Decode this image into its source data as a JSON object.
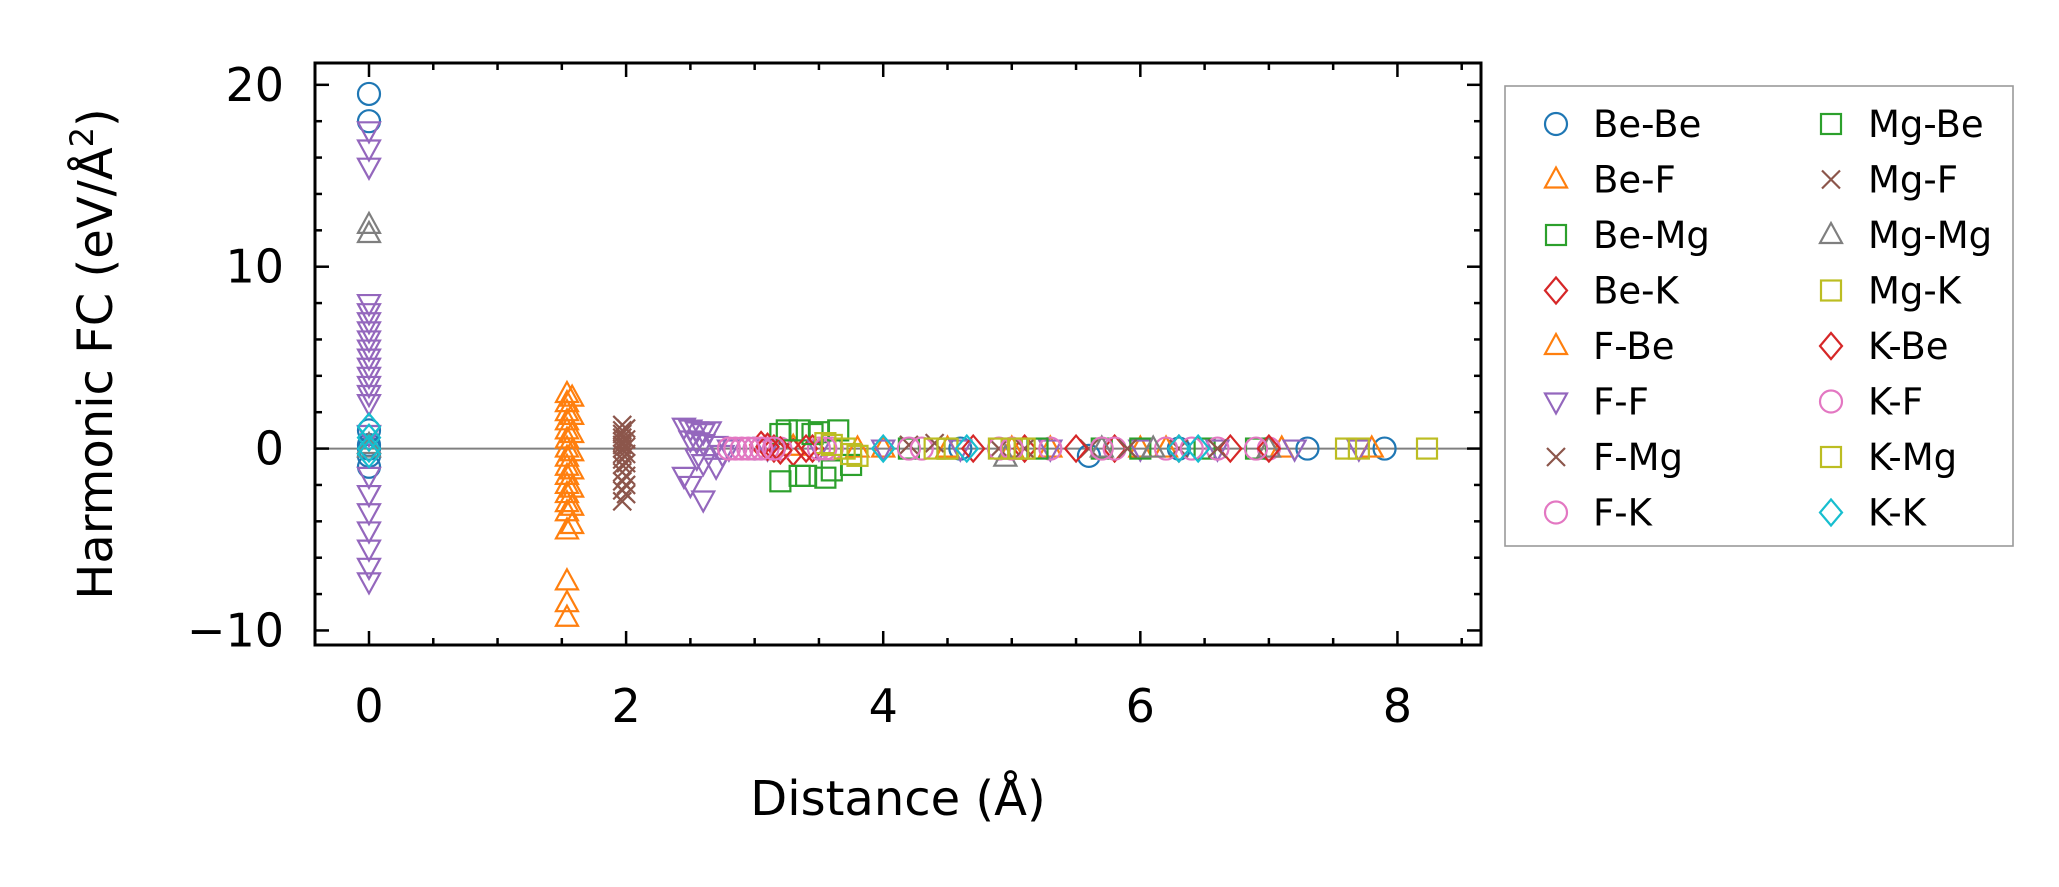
{
  "chart_data": {
    "type": "scatter",
    "xlabel": "Distance (Å)",
    "ylabel_main": "Harmonic FC (eV/Å",
    "ylabel_sup": "2",
    "ylabel_end": ")",
    "xlim": [
      -0.42,
      8.65
    ],
    "ylim": [
      -10.8,
      21.2
    ],
    "xticks": [
      0,
      2,
      4,
      6,
      8
    ],
    "xtick_labels": [
      "0",
      "2",
      "4",
      "6",
      "8"
    ],
    "yticks": [
      -10,
      0,
      10,
      20
    ],
    "ytick_labels": [
      "−10",
      "0",
      "10",
      "20"
    ],
    "grid": false,
    "zero_line": true,
    "legend_position": "outside-right",
    "series": [
      {
        "name": "Be-Be",
        "marker": "circle",
        "color": "#1f77b4",
        "x": [
          0,
          0,
          0,
          0,
          0,
          0,
          0,
          3.0,
          4.6,
          5.6,
          6.3,
          7.3,
          7.9
        ],
        "y": [
          19.5,
          18.0,
          1.0,
          0.2,
          -0.4,
          -1.0,
          0.0,
          0.0,
          0.0,
          -0.4,
          0.0,
          0.0,
          0.0
        ]
      },
      {
        "name": "Be-F",
        "marker": "triangle-up",
        "color": "#ff7f0e",
        "x": [
          1.54,
          1.54,
          1.54,
          1.54,
          1.54,
          1.54,
          1.54,
          1.54,
          1.54,
          1.54,
          1.54,
          1.54,
          1.54,
          1.54,
          1.54,
          1.54,
          1.54,
          1.54,
          3.3,
          3.8,
          4.5,
          5.3,
          6.2,
          7.1,
          7.8
        ],
        "y": [
          3.0,
          2.5,
          2.0,
          1.5,
          1.0,
          0.5,
          0.0,
          -0.5,
          -1.0,
          -1.5,
          -2.0,
          -2.5,
          -3.0,
          -3.5,
          -4.5,
          -7.3,
          -8.5,
          -9.3,
          0.1,
          0.0,
          0.0,
          0.0,
          0.0,
          0.0,
          0.0
        ]
      },
      {
        "name": "Be-Mg",
        "marker": "square",
        "color": "#2ca02c",
        "x": [
          3.2,
          3.35,
          3.5,
          3.2,
          3.4,
          3.6,
          4.2,
          5.0,
          5.7,
          6.5
        ],
        "y": [
          0.8,
          1.0,
          0.9,
          -1.8,
          -1.5,
          -1.2,
          0.0,
          0.0,
          0.0,
          0.0
        ]
      },
      {
        "name": "Be-K",
        "marker": "diamond",
        "color": "#d62728",
        "x": [
          3.05,
          3.15,
          3.3,
          3.45,
          5.1,
          5.8,
          6.7
        ],
        "y": [
          0.2,
          0.0,
          -0.2,
          0.0,
          0.0,
          0.0,
          0.0
        ]
      },
      {
        "name": "F-Be",
        "marker": "triangle-up",
        "color": "#ff7f0e",
        "x": [
          1.58,
          1.58,
          1.58,
          1.58,
          1.58,
          1.58,
          1.58,
          1.58,
          4.0,
          5.0,
          6.0,
          7.0
        ],
        "y": [
          2.8,
          1.8,
          0.8,
          -0.2,
          -1.2,
          -2.2,
          -3.2,
          -4.2,
          0.0,
          0.0,
          0.0,
          0.0
        ]
      },
      {
        "name": "F-F",
        "marker": "triangle-down",
        "color": "#9467bd",
        "x": [
          0,
          0,
          0,
          0,
          0,
          0,
          0,
          0,
          0,
          0,
          0,
          0,
          0,
          0,
          0,
          0,
          0,
          0,
          0,
          0,
          0,
          0,
          0,
          2.45,
          2.5,
          2.55,
          2.6,
          2.65,
          2.5,
          2.55,
          2.6,
          2.7,
          2.55,
          2.6,
          2.75,
          2.8,
          2.45,
          2.5,
          2.6,
          2.7,
          3.1,
          3.5,
          4.0,
          4.6,
          5.3,
          6.0,
          6.6,
          7.2,
          7.7
        ],
        "y": [
          17.5,
          16.5,
          15.5,
          8.0,
          7.5,
          7.0,
          6.5,
          6.0,
          5.5,
          5.0,
          4.5,
          4.0,
          3.5,
          3.0,
          2.5,
          0.8,
          -1.5,
          -2.5,
          -3.5,
          -4.5,
          -5.5,
          -6.5,
          -7.3,
          1.2,
          1.1,
          1.0,
          0.9,
          1.0,
          0.5,
          0.4,
          0.3,
          0.2,
          -0.5,
          -0.8,
          -0.3,
          0.0,
          -1.5,
          -2.0,
          -2.8,
          -1.0,
          0.0,
          0.0,
          0.0,
          0.0,
          0.0,
          0.0,
          0.0,
          0.0,
          0.0
        ]
      },
      {
        "name": "F-Mg",
        "marker": "x",
        "color": "#8c564b",
        "x": [
          1.97,
          1.97,
          1.97,
          1.97,
          1.97,
          1.97,
          1.97,
          1.97,
          1.97,
          1.97,
          1.97,
          1.97,
          1.97,
          1.97,
          4.2,
          4.9,
          5.6,
          6.3
        ],
        "y": [
          1.3,
          1.0,
          0.8,
          0.6,
          0.4,
          0.2,
          0.0,
          -0.3,
          -0.6,
          -0.9,
          -1.3,
          -1.8,
          -2.3,
          -2.9,
          0.2,
          0.0,
          0.0,
          0.0
        ]
      },
      {
        "name": "F-K",
        "marker": "circle",
        "color": "#e377c2",
        "x": [
          2.8,
          2.9,
          3.0,
          3.1,
          3.2,
          3.5,
          3.6,
          4.3,
          4.9,
          5.3,
          5.8,
          6.2,
          6.6,
          7.0
        ],
        "y": [
          0.0,
          0.0,
          0.0,
          0.0,
          0.0,
          0.0,
          0.0,
          0.0,
          0.0,
          0.0,
          0.0,
          0.0,
          0.0,
          0.0
        ]
      },
      {
        "name": "Mg-Be",
        "marker": "square",
        "color": "#2ca02c",
        "x": [
          3.25,
          3.45,
          3.65,
          3.35,
          3.55,
          3.75,
          4.5,
          5.2,
          6.0,
          6.9
        ],
        "y": [
          1.0,
          0.8,
          1.0,
          -1.5,
          -1.6,
          -0.9,
          0.0,
          0.0,
          0.0,
          0.0
        ]
      },
      {
        "name": "Mg-F",
        "marker": "x",
        "color": "#8c564b",
        "x": [
          2.0,
          2.0,
          2.0,
          2.0,
          2.0,
          2.0,
          2.0,
          2.0,
          4.4,
          5.1,
          5.9,
          6.6
        ],
        "y": [
          1.1,
          0.5,
          0.1,
          -0.3,
          -0.8,
          -1.5,
          -2.0,
          -2.5,
          0.3,
          0.0,
          0.0,
          0.0
        ]
      },
      {
        "name": "Mg-Mg",
        "marker": "triangle-up",
        "color": "#7f7f7f",
        "x": [
          0,
          0,
          0,
          0,
          4.95,
          5.7,
          6.1,
          7.0
        ],
        "y": [
          12.3,
          11.8,
          0.2,
          0.0,
          -0.5,
          0.0,
          0.0,
          0.0
        ]
      },
      {
        "name": "Mg-K",
        "marker": "square",
        "color": "#bcbd22",
        "x": [
          3.55,
          3.7,
          3.8,
          4.5,
          5.0,
          5.1,
          7.7,
          8.23
        ],
        "y": [
          0.3,
          0.0,
          -0.4,
          0.0,
          0.0,
          0.0,
          0.0,
          0.0
        ]
      },
      {
        "name": "K-Be",
        "marker": "diamond",
        "color": "#d62728",
        "x": [
          3.1,
          3.2,
          3.4,
          4.7,
          5.5,
          6.3,
          7.0
        ],
        "y": [
          0.1,
          -0.1,
          0.0,
          0.0,
          0.0,
          0.0,
          0.0
        ]
      },
      {
        "name": "K-F",
        "marker": "circle",
        "color": "#e377c2",
        "x": [
          2.85,
          2.95,
          3.05,
          3.15,
          3.55,
          4.2,
          5.0,
          5.7,
          6.4,
          6.9
        ],
        "y": [
          0.0,
          0.0,
          0.0,
          0.0,
          0.0,
          0.0,
          0.0,
          0.0,
          0.0,
          0.0
        ]
      },
      {
        "name": "K-Mg",
        "marker": "square",
        "color": "#bcbd22",
        "x": [
          3.6,
          3.75,
          4.4,
          4.9,
          5.05,
          7.6
        ],
        "y": [
          0.2,
          -0.3,
          0.0,
          0.0,
          0.0,
          0.0
        ]
      },
      {
        "name": "K-K",
        "marker": "diamond",
        "color": "#17becf",
        "x": [
          0,
          0,
          0,
          0,
          4.0,
          4.65,
          6.3,
          6.45
        ],
        "y": [
          1.2,
          0.6,
          0.0,
          -0.3,
          0.0,
          0.0,
          0.0,
          0.0
        ]
      }
    ]
  }
}
